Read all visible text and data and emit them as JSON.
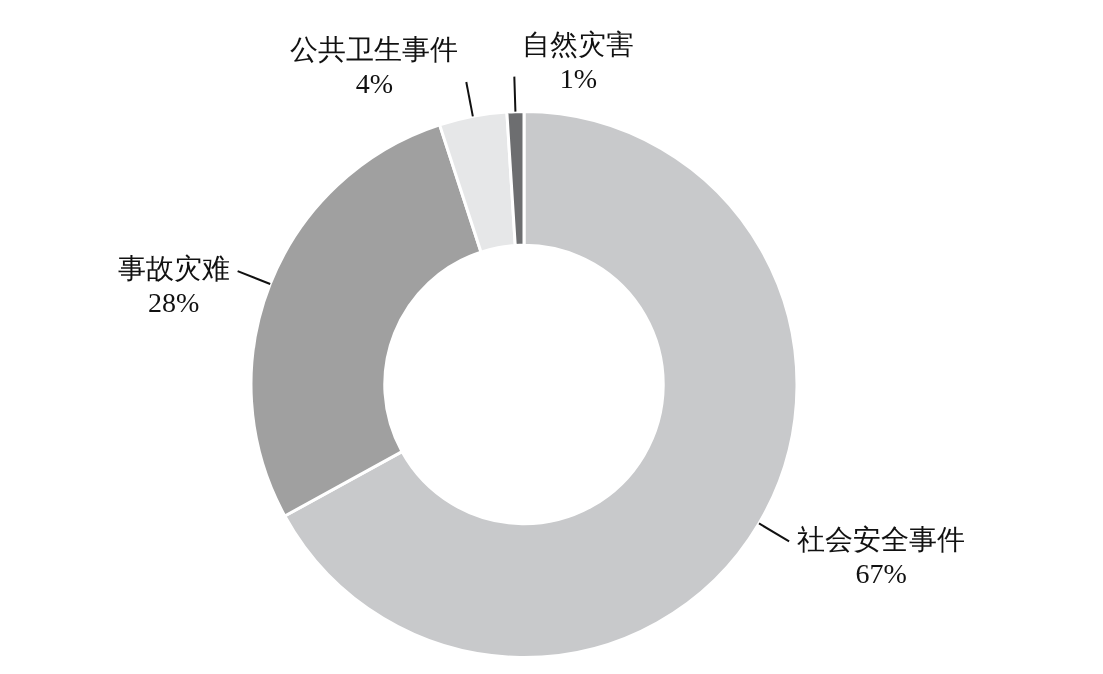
{
  "chart_data": {
    "type": "donut",
    "categories": [
      "社会安全事件",
      "事故灾难",
      "公共卫生事件",
      "自然灾害"
    ],
    "values": [
      67,
      28,
      4,
      1
    ],
    "colors": [
      "#c8c9cb",
      "#a0a0a0",
      "#e6e7e8",
      "#6d6e70"
    ],
    "value_labels": [
      "67%",
      "28%",
      "4%",
      "1%"
    ],
    "legend": false
  }
}
